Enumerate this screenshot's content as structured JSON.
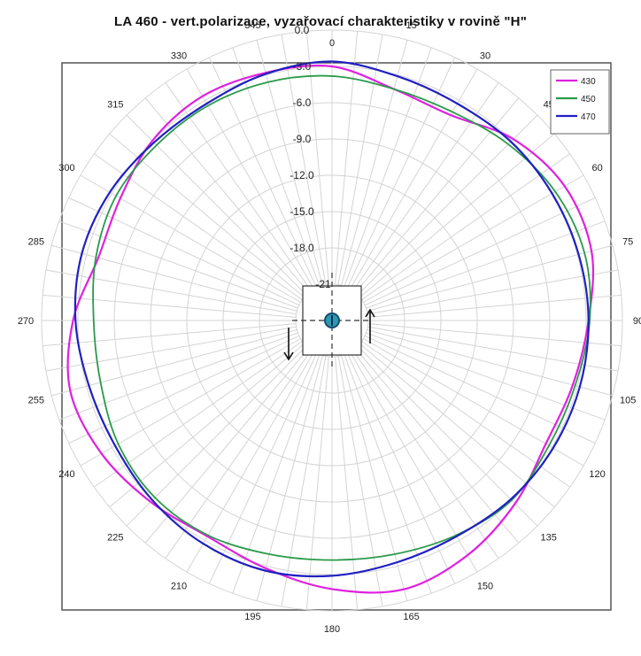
{
  "chart_data": {
    "type": "polar-line",
    "title": "LA 460  - vert.polarizace,  vyzařovací charakteristiky v rovině \"H\"",
    "angle_ticks": [
      "0",
      "15",
      "30",
      "45",
      "60",
      "75",
      "90",
      "105",
      "120",
      "135",
      "150",
      "165",
      "180",
      "195",
      "210",
      "225",
      "240",
      "255",
      "270",
      "285",
      "300",
      "315",
      "330",
      "345"
    ],
    "radial_ticks": [
      "0.0",
      "-3.0",
      "-6.0",
      "-9.0",
      "-12.0",
      "-15.0",
      "-18.0",
      "-21"
    ],
    "radial_range": [
      -24,
      0
    ],
    "angle_grid_step_deg": 5,
    "direction": "clockwise",
    "zero_at": "top",
    "legend_position": "top-right",
    "series": [
      {
        "name": "430",
        "color": "#e020e0",
        "angles": [
          0,
          15,
          30,
          45,
          60,
          75,
          90,
          105,
          120,
          135,
          150,
          165,
          180,
          195,
          210,
          225,
          240,
          255,
          270,
          285,
          300,
          315,
          330,
          345
        ],
        "values": [
          -3.0,
          -4.2,
          -4.4,
          -2.8,
          -1.8,
          -1.8,
          -2.8,
          -3.4,
          -3.6,
          -2.6,
          -1.6,
          -1.0,
          -1.8,
          -2.8,
          -3.4,
          -2.8,
          -2.0,
          -1.6,
          -2.6,
          -4.0,
          -3.8,
          -3.0,
          -2.6,
          -2.8
        ]
      },
      {
        "name": "450",
        "color": "#2a9a4a",
        "angles": [
          0,
          15,
          30,
          45,
          60,
          75,
          90,
          105,
          120,
          135,
          150,
          165,
          180,
          195,
          210,
          225,
          240,
          255,
          270,
          285,
          300,
          315,
          330,
          345
        ],
        "values": [
          -3.8,
          -4.2,
          -4.1,
          -3.4,
          -2.7,
          -2.4,
          -2.7,
          -3.2,
          -3.3,
          -3.0,
          -3.5,
          -4.0,
          -4.2,
          -4.0,
          -3.5,
          -3.3,
          -3.6,
          -4.2,
          -4.3,
          -3.8,
          -3.4,
          -3.5,
          -3.5,
          -3.6
        ]
      },
      {
        "name": "470",
        "color": "#2020c0",
        "angles": [
          0,
          15,
          30,
          45,
          60,
          75,
          90,
          105,
          120,
          135,
          150,
          165,
          180,
          195,
          210,
          225,
          240,
          255,
          270,
          285,
          300,
          315,
          330,
          345
        ],
        "values": [
          -2.6,
          -3.1,
          -3.3,
          -3.1,
          -3.0,
          -2.9,
          -2.8,
          -2.8,
          -2.9,
          -3.1,
          -3.4,
          -3.3,
          -2.9,
          -2.6,
          -2.7,
          -3.0,
          -3.3,
          -3.2,
          -2.8,
          -2.6,
          -2.8,
          -3.2,
          -3.3,
          -2.9
        ]
      }
    ]
  }
}
